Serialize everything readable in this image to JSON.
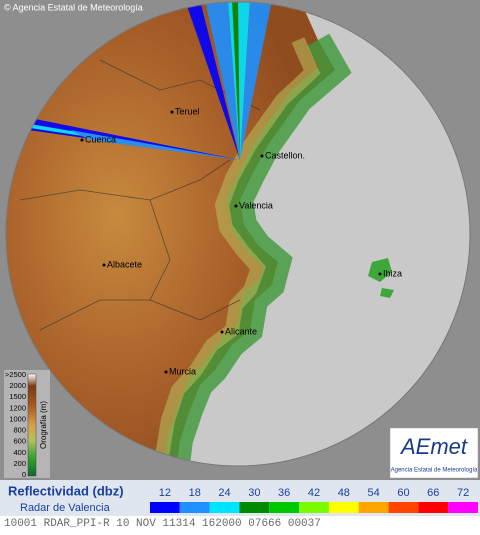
{
  "copyright": "© Agencia Estatal de Meteorología",
  "cities": [
    "Teruel",
    "Cuenca",
    "Castellon.",
    "Valencia",
    "Albacete",
    "Ibiza",
    "Alicante",
    "Murcia"
  ],
  "orography": {
    "title": "Orografía (m)",
    "labels": [
      ">2500",
      "2000",
      "1500",
      "1200",
      "1000",
      "800",
      "600",
      "400",
      "200",
      "0"
    ]
  },
  "logo": {
    "name": "AEmet",
    "subtitle": "Agencia Estatal de Meteorología"
  },
  "legend": {
    "title": "Reflectividad (dbz)",
    "subtitle": "Radar de Valencia",
    "levels": [
      {
        "value": "12",
        "color": "#0000ff"
      },
      {
        "value": "18",
        "color": "#1e90ff"
      },
      {
        "value": "24",
        "color": "#00e5ff"
      },
      {
        "value": "30",
        "color": "#008a00"
      },
      {
        "value": "36",
        "color": "#00c800"
      },
      {
        "value": "42",
        "color": "#7cfc00"
      },
      {
        "value": "48",
        "color": "#ffff00"
      },
      {
        "value": "54",
        "color": "#ffa500"
      },
      {
        "value": "60",
        "color": "#ff4500"
      },
      {
        "value": "66",
        "color": "#ff0000"
      },
      {
        "value": "72",
        "color": "#ff00ff"
      }
    ]
  },
  "status_line": "10001 RDAR_PPI-R 10 NOV 11314 162000 07666 00037"
}
